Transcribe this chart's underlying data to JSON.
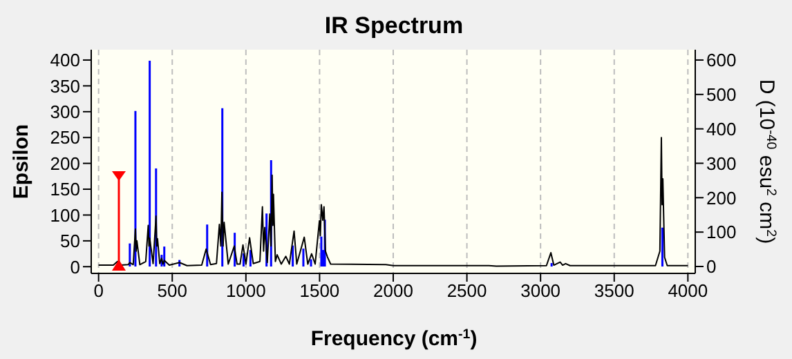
{
  "chart_data": {
    "type": "line",
    "title": "IR Spectrum",
    "xlabel": "Frequency (cm$^{-1}$)",
    "ylabel": "Epsilon",
    "y2label": "D (10$^{-40}$ esu$^{2}$ cm$^{2}$)",
    "xlim": [
      -50,
      4050
    ],
    "xticks": [
      0,
      500,
      1000,
      1500,
      2000,
      2500,
      3000,
      3500,
      4000
    ],
    "ylim": [
      -13,
      420
    ],
    "yticks": [
      0,
      50,
      100,
      150,
      200,
      250,
      300,
      350,
      400
    ],
    "y2lim": [
      -20,
      630
    ],
    "y2ticks": [
      0,
      100,
      200,
      300,
      400,
      500,
      600
    ],
    "grid": true,
    "legend": false,
    "marker": "none",
    "line_style": "solid",
    "series": [
      {
        "color": "#000000",
        "x": [
          0,
          100,
          128,
          150,
          200,
          212,
          235,
          250,
          255,
          260,
          280,
          320,
          337,
          342,
          347,
          370,
          390,
          395,
          400,
          415,
          428,
          437,
          446,
          480,
          549,
          600,
          700,
          730,
          760,
          800,
          820,
          830,
          837,
          845,
          852,
          880,
          921,
          940,
          960,
          980,
          1000,
          1025,
          1050,
          1095,
          1112,
          1120,
          1128,
          1145,
          1162,
          1170,
          1178,
          1183,
          1187,
          1200,
          1212,
          1240,
          1271,
          1295,
          1327,
          1345,
          1396,
          1420,
          1446,
          1470,
          1499,
          1505,
          1512,
          1522,
          1530,
          1540,
          1553,
          1575,
          1950,
          2000,
          2650,
          2700,
          3040,
          3070,
          3090,
          3133,
          3150,
          3170,
          3200,
          3500,
          3780,
          3810,
          3820,
          3825,
          3830,
          3842,
          3860,
          4000
        ],
        "values": [
          3,
          3,
          10,
          3,
          4,
          8,
          4,
          73,
          30,
          50,
          4,
          10,
          80,
          40,
          55,
          6,
          98,
          40,
          54,
          6,
          16,
          5,
          12,
          3,
          8,
          2,
          3,
          34,
          4,
          6,
          82,
          40,
          144,
          40,
          86,
          5,
          40,
          5,
          5,
          42,
          5,
          56,
          6,
          10,
          116,
          30,
          76,
          8,
          102,
          40,
          177,
          80,
          140,
          10,
          23,
          5,
          20,
          5,
          69,
          5,
          57,
          5,
          25,
          5,
          89,
          60,
          120,
          90,
          116,
          30,
          19,
          5,
          4,
          2,
          2,
          1,
          2,
          27,
          3,
          9,
          3,
          6,
          2,
          2,
          2,
          30,
          250,
          120,
          170,
          18,
          2,
          2
        ]
      },
      {
        "type": "bar",
        "axis": "y2",
        "color": "#0000ff",
        "x": [
          212,
          250,
          347,
          390,
          428,
          446,
          549,
          737,
          840,
          924,
          984,
          1031,
          1140,
          1171,
          1318,
          1390,
          1442,
          1512,
          1524,
          1536,
          3075,
          3827
        ],
        "values": [
          67,
          452,
          598,
          285,
          34,
          58,
          19,
          122,
          460,
          98,
          38,
          48,
          154,
          309,
          61,
          52,
          21,
          87,
          48,
          136,
          10,
          113
        ]
      }
    ]
  }
}
